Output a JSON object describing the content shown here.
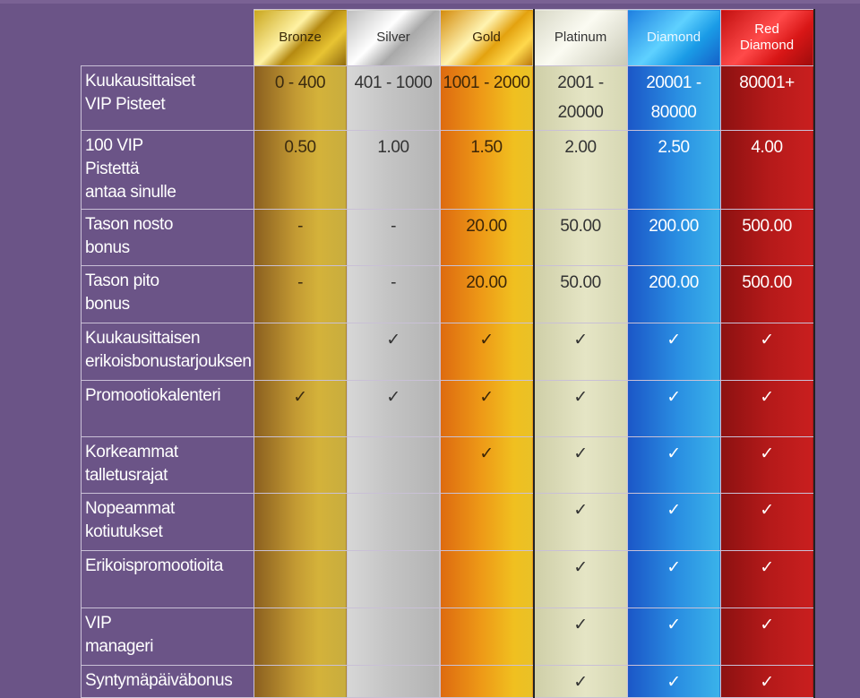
{
  "tiers": [
    "Bronze",
    "Silver",
    "Gold",
    "Platinum",
    "Diamond",
    "Red\nDiamond"
  ],
  "rows": [
    {
      "label": "Kuukausittaiset\nVIP Pisteet",
      "values": [
        "0 - 400",
        "401 - 1000",
        "1001 - 2000",
        "2001 -\n20000",
        "20001 -\n80000",
        "80001+"
      ]
    },
    {
      "label": "100 VIP\nPistettä\nantaa sinulle",
      "values": [
        "0.50",
        "1.00",
        "1.50",
        "2.00",
        "2.50",
        "4.00"
      ]
    },
    {
      "label": "Tason nosto\nbonus",
      "values": [
        "-",
        "-",
        "20.00",
        "50.00",
        "200.00",
        "500.00"
      ]
    },
    {
      "label": "Tason pito\nbonus",
      "values": [
        "-",
        "-",
        "20.00",
        "50.00",
        "200.00",
        "500.00"
      ]
    },
    {
      "label": "Kuukausittaisen\nerikoisbonustarjouksen",
      "values": [
        "",
        "✓",
        "✓",
        "✓",
        "✓",
        "✓"
      ]
    },
    {
      "label": "Promootiokalenteri",
      "values": [
        "✓",
        "✓",
        "✓",
        "✓",
        "✓",
        "✓"
      ]
    },
    {
      "label": "Korkeammat\ntalletusrajat",
      "values": [
        "",
        "",
        "✓",
        "✓",
        "✓",
        "✓"
      ]
    },
    {
      "label": "Nopeammat\nkotiutukset",
      "values": [
        "",
        "",
        "",
        "✓",
        "✓",
        "✓"
      ]
    },
    {
      "label": "Erikoispromootioita",
      "values": [
        "",
        "",
        "",
        "✓",
        "✓",
        "✓"
      ]
    },
    {
      "label": "VIP\nmanageri",
      "values": [
        "",
        "",
        "",
        "✓",
        "✓",
        "✓"
      ]
    },
    {
      "label": "Syntymäpäiväbonus",
      "values": [
        "",
        "",
        "",
        "✓",
        "✓",
        "✓"
      ]
    }
  ]
}
